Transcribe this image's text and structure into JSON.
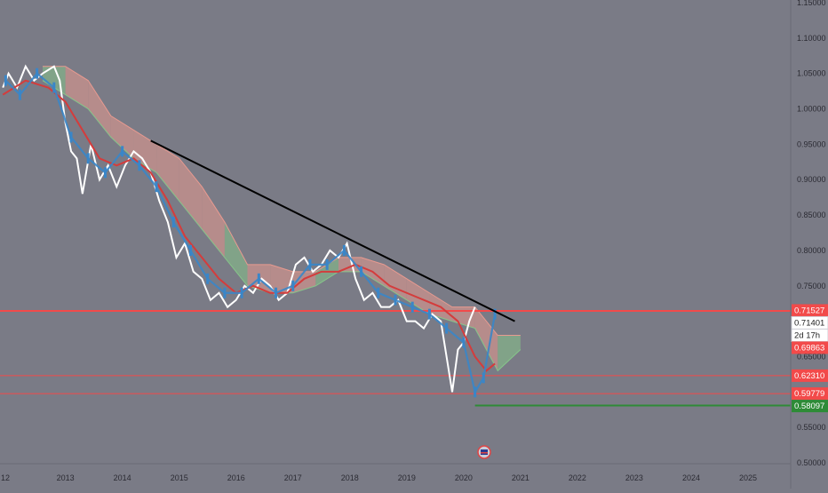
{
  "chart_data": {
    "type": "line",
    "instrument_note": "",
    "colors": {
      "background": "#7a7b86",
      "axis_panel": "#7a7b86",
      "price_line": "#ffffff",
      "candles": "#3a86c8",
      "conversion_line": "#d43c3c",
      "cloud_bear": "#e89a90",
      "cloud_bull": "#86c58a",
      "trendline": "#000000",
      "level_red": "#f24a4a",
      "level_green": "#2e8b37",
      "label_text_light": "#ffffff",
      "label_text_dark": "#222222"
    },
    "y_axis": {
      "min": 0.5,
      "max": 1.15,
      "ticks": [
        "0.50000",
        "0.55000",
        "0.60000",
        "0.65000",
        "0.70000",
        "0.75000",
        "0.80000",
        "0.85000",
        "0.90000",
        "0.95000",
        "1.00000",
        "1.05000",
        "1.10000",
        "1.15000"
      ]
    },
    "x_axis": {
      "ticks": [
        "12",
        "2013",
        "2014",
        "2015",
        "2016",
        "2017",
        "2018",
        "2019",
        "2020",
        "2021",
        "2022",
        "2023",
        "2024",
        "2025"
      ],
      "tick_years": [
        2012.0,
        2013.0,
        2014.0,
        2015.0,
        2016.0,
        2017.0,
        2018.0,
        2019.0,
        2020.0,
        2021.0,
        2022.0,
        2023.0,
        2024.0,
        2025.0
      ]
    },
    "price_labels": [
      {
        "text": "0.71527",
        "value": 0.71527,
        "style": "red"
      },
      {
        "text": "0.71401",
        "value": 0.71401,
        "style": "white"
      },
      {
        "text": "2d 17h",
        "value": 0.69863,
        "style": "timer"
      },
      {
        "text": "0.69863",
        "value": 0.69863,
        "style": "red"
      },
      {
        "text": "0.62310",
        "value": 0.6231,
        "style": "red"
      },
      {
        "text": "0.59779",
        "value": 0.59779,
        "style": "red"
      },
      {
        "text": "0.58097",
        "value": 0.58097,
        "style": "green"
      }
    ],
    "horizontal_levels": [
      {
        "value": 0.71527,
        "color": "red",
        "from_year": 2011.85
      },
      {
        "value": 0.71401,
        "color": "red",
        "from_year": 2011.85
      },
      {
        "value": 0.6231,
        "color": "red",
        "from_year": 2011.85
      },
      {
        "value": 0.59779,
        "color": "red",
        "from_year": 2011.85
      },
      {
        "value": 0.58097,
        "color": "green",
        "from_year": 2020.2
      }
    ],
    "trendline": {
      "from": [
        2014.5,
        0.955
      ],
      "to": [
        2020.9,
        0.7
      ]
    },
    "series": [
      {
        "role": "price",
        "x": [
          2011.9,
          2012.0,
          2012.15,
          2012.3,
          2012.45,
          2012.6,
          2012.8,
          2012.9,
          2013.0,
          2013.1,
          2013.2,
          2013.3,
          2013.45,
          2013.6,
          2013.75,
          2013.9,
          2014.05,
          2014.2,
          2014.35,
          2014.5,
          2014.65,
          2014.8,
          2014.95,
          2015.1,
          2015.25,
          2015.4,
          2015.55,
          2015.7,
          2015.85,
          2016.0,
          2016.15,
          2016.3,
          2016.45,
          2016.6,
          2016.75,
          2016.9,
          2017.05,
          2017.2,
          2017.35,
          2017.5,
          2017.65,
          2017.8,
          2017.95,
          2018.1,
          2018.25,
          2018.4,
          2018.55,
          2018.7,
          2018.85,
          2019.0,
          2019.15,
          2019.3,
          2019.45,
          2019.6,
          2019.7,
          2019.8,
          2019.9,
          2020.0,
          2020.1,
          2020.2
        ],
        "y": [
          1.03,
          1.05,
          1.03,
          1.06,
          1.04,
          1.05,
          1.06,
          1.04,
          0.98,
          0.94,
          0.93,
          0.88,
          0.95,
          0.9,
          0.92,
          0.89,
          0.92,
          0.94,
          0.93,
          0.91,
          0.87,
          0.84,
          0.79,
          0.81,
          0.77,
          0.76,
          0.73,
          0.74,
          0.72,
          0.73,
          0.75,
          0.74,
          0.76,
          0.75,
          0.73,
          0.74,
          0.78,
          0.79,
          0.77,
          0.78,
          0.8,
          0.79,
          0.81,
          0.76,
          0.73,
          0.74,
          0.72,
          0.72,
          0.73,
          0.7,
          0.7,
          0.69,
          0.71,
          0.7,
          0.65,
          0.6,
          0.66,
          0.67,
          0.7,
          0.72
        ]
      },
      {
        "role": "conversion",
        "x": [
          2011.9,
          2012.3,
          2012.7,
          2013.0,
          2013.3,
          2013.6,
          2013.9,
          2014.2,
          2014.5,
          2014.8,
          2015.1,
          2015.4,
          2015.7,
          2016.0,
          2016.3,
          2016.6,
          2016.9,
          2017.2,
          2017.5,
          2017.8,
          2018.1,
          2018.4,
          2018.7,
          2019.0,
          2019.3,
          2019.6,
          2019.9,
          2020.2,
          2020.4,
          2020.55
        ],
        "y": [
          1.02,
          1.04,
          1.03,
          1.01,
          0.97,
          0.93,
          0.92,
          0.93,
          0.91,
          0.87,
          0.82,
          0.79,
          0.76,
          0.74,
          0.75,
          0.74,
          0.74,
          0.76,
          0.77,
          0.77,
          0.78,
          0.77,
          0.75,
          0.74,
          0.73,
          0.72,
          0.7,
          0.65,
          0.63,
          0.64
        ]
      },
      {
        "role": "candles",
        "x": [
          2011.95,
          2012.2,
          2012.5,
          2012.8,
          2013.1,
          2013.4,
          2013.7,
          2014.0,
          2014.3,
          2014.6,
          2014.9,
          2015.2,
          2015.5,
          2015.8,
          2016.1,
          2016.4,
          2016.7,
          2017.0,
          2017.3,
          2017.6,
          2017.9,
          2018.2,
          2018.5,
          2018.8,
          2019.1,
          2019.4,
          2019.7,
          2020.0,
          2020.2,
          2020.35,
          2020.55
        ],
        "y": [
          1.04,
          1.02,
          1.05,
          1.03,
          0.96,
          0.93,
          0.91,
          0.94,
          0.92,
          0.89,
          0.84,
          0.8,
          0.76,
          0.74,
          0.74,
          0.76,
          0.74,
          0.75,
          0.78,
          0.78,
          0.8,
          0.77,
          0.74,
          0.73,
          0.72,
          0.71,
          0.69,
          0.67,
          0.6,
          0.62,
          0.71
        ]
      }
    ],
    "cloud": {
      "x": [
        2012.6,
        2013.0,
        2013.4,
        2013.8,
        2014.2,
        2014.6,
        2015.0,
        2015.4,
        2015.8,
        2016.2,
        2016.6,
        2017.0,
        2017.4,
        2017.8,
        2018.2,
        2018.6,
        2019.0,
        2019.4,
        2019.8,
        2020.2,
        2020.6,
        2021.0
      ],
      "upper": [
        1.06,
        1.06,
        1.04,
        0.99,
        0.97,
        0.95,
        0.93,
        0.89,
        0.84,
        0.78,
        0.78,
        0.77,
        0.77,
        0.79,
        0.79,
        0.78,
        0.76,
        0.74,
        0.72,
        0.72,
        0.68,
        0.68
      ],
      "lower": [
        1.04,
        1.02,
        1.0,
        0.96,
        0.93,
        0.91,
        0.87,
        0.83,
        0.79,
        0.75,
        0.74,
        0.74,
        0.75,
        0.77,
        0.77,
        0.75,
        0.73,
        0.71,
        0.7,
        0.69,
        0.63,
        0.66
      ],
      "bull_segments": [
        [
          2012.6,
          2013.0
        ],
        [
          2015.8,
          2016.2
        ],
        [
          2017.4,
          2017.8
        ],
        [
          2020.8,
          2021.0
        ]
      ]
    },
    "title": "",
    "xlabel": "",
    "ylabel": "",
    "grid": false,
    "legend": "none"
  }
}
